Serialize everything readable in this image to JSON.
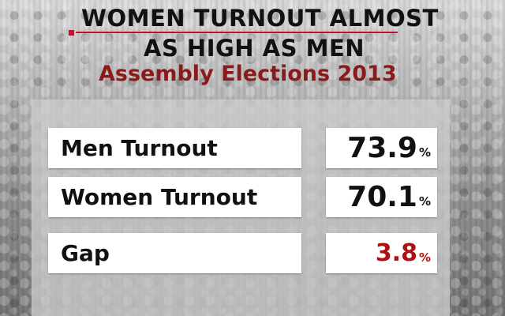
{
  "header": {
    "title_line1": "WOMEN TURNOUT ALMOST",
    "title_line2": "AS HIGH AS MEN",
    "subtitle": "Assembly Elections 2013"
  },
  "rows": [
    {
      "label": "Men Turnout",
      "value": "73.9",
      "unit": "%"
    },
    {
      "label": "Women Turnout",
      "value": "70.1",
      "unit": "%"
    },
    {
      "label": "Gap",
      "value": "3.8",
      "unit": "%"
    }
  ],
  "colors": {
    "accent_red": "#c8102e",
    "subtitle": "#8b1a1a",
    "gap_value": "#b01010"
  }
}
